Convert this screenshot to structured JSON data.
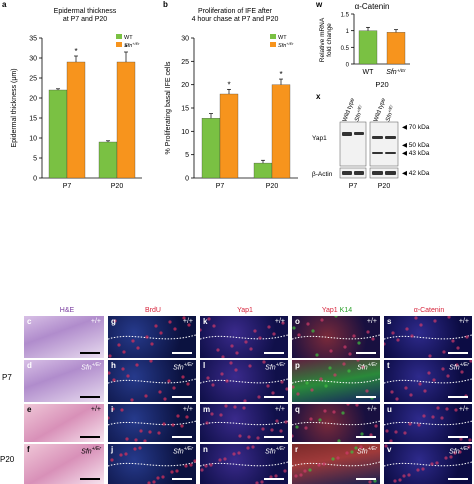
{
  "panel_a": {
    "letter": "a",
    "title_lines": [
      "Epidermal thickness",
      "at P7 and P20"
    ],
    "ylabel": "Epidermal thickness (μm)",
    "legend": [
      "WT",
      "Sfn+/Er"
    ]
  },
  "panel_b": {
    "letter": "b",
    "title_lines": [
      "Proliferation of IFE after",
      "4 hour chase at P7 and P20"
    ],
    "ylabel": "% Proliferating basal IFE cells",
    "legend": [
      "WT",
      "Sfn+/Er"
    ]
  },
  "panel_w": {
    "letter": "w",
    "title": "α-Catenin",
    "ylabel_lines": [
      "Relative mRNA",
      "fold change"
    ],
    "group": "P20"
  },
  "panel_x": {
    "letter": "x",
    "lanes": [
      "Wild type",
      "Sfn+/Er",
      "Wild type",
      "Sfn+/Er"
    ],
    "rows": [
      "Yap1",
      "β-Actin"
    ],
    "markers": [
      "70 kDa",
      "50 kDa",
      "43 kDa",
      "42 kDa"
    ],
    "groups": [
      "P7",
      "P20"
    ]
  },
  "micro": {
    "column_headers": [
      "H&E",
      "BrdU",
      "Yap1",
      "Yap1 K14",
      "α-Catenin"
    ],
    "row_labels": [
      "P7",
      "P20"
    ],
    "panel_letters": [
      "c",
      "d",
      "e",
      "f",
      "g",
      "h",
      "i",
      "j",
      "k",
      "l",
      "m",
      "n",
      "o",
      "p",
      "q",
      "r",
      "s",
      "t",
      "u",
      "v"
    ],
    "wt": "+/+",
    "mut": "Sfn+/Er"
  },
  "chart_data": [
    {
      "type": "bar",
      "title": "Epidermal thickness at P7 and P20",
      "xlabel": "",
      "ylabel": "Epidermal thickness (μm)",
      "categories": [
        "P7",
        "P20"
      ],
      "series": [
        {
          "name": "WT",
          "values": [
            22,
            9
          ],
          "errors": [
            0.3,
            0.3
          ],
          "color": "#7ac143"
        },
        {
          "name": "Sfn+/Er",
          "values": [
            29,
            29
          ],
          "errors": [
            1.5,
            2.5
          ],
          "color": "#f7941d"
        }
      ],
      "significance": [
        "*",
        "*"
      ],
      "ylim": [
        0,
        35
      ],
      "yticks": [
        0,
        5,
        10,
        15,
        20,
        25,
        30,
        35
      ],
      "legend": "top-right"
    },
    {
      "type": "bar",
      "title": "Proliferation of IFE after 4 hour chase at P7 and P20",
      "xlabel": "",
      "ylabel": "% Proliferating basal IFE cells",
      "categories": [
        "P7",
        "P20"
      ],
      "series": [
        {
          "name": "WT",
          "values": [
            12.8,
            3.2
          ],
          "errors": [
            1.0,
            0.6
          ],
          "color": "#7ac143"
        },
        {
          "name": "Sfn+/Er",
          "values": [
            18.0,
            20.0
          ],
          "errors": [
            1.0,
            1.2
          ],
          "color": "#f7941d"
        }
      ],
      "significance": [
        "*",
        "*"
      ],
      "ylim": [
        0,
        30
      ],
      "yticks": [
        0,
        5,
        10,
        15,
        20,
        25,
        30
      ],
      "legend": "top-right"
    },
    {
      "type": "bar",
      "title": "α-Catenin",
      "xlabel": "P20",
      "ylabel": "Relative mRNA fold change",
      "categories": [
        "WT",
        "Sfn+/Er"
      ],
      "series": [
        {
          "name": "",
          "values": [
            1.0,
            0.95
          ],
          "errors": [
            0.1,
            0.08
          ],
          "colors": [
            "#7ac143",
            "#f7941d"
          ]
        }
      ],
      "ylim": [
        0,
        1.5
      ],
      "yticks": [
        0,
        0.5,
        1,
        1.5
      ]
    }
  ]
}
